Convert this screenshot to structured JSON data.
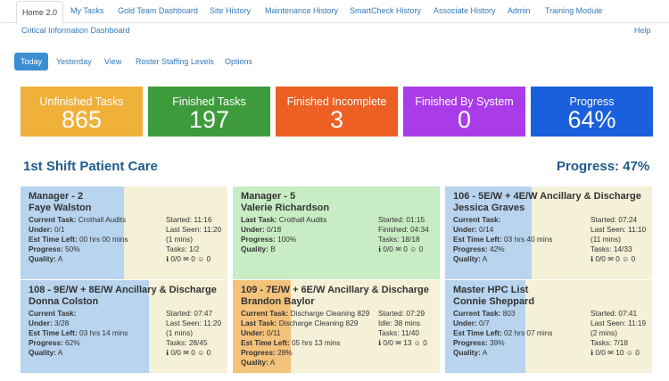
{
  "nav": {
    "items": [
      "Home 2.0",
      "My Tasks",
      "Gold Team Dashboard",
      "Site History",
      "Maintenance History",
      "SmartCheck History",
      "Associate History",
      "Admin",
      "Training Module"
    ],
    "sub_left": "Critical Information Dashboard",
    "help": "Help"
  },
  "pills": [
    "Today",
    "Yesterday",
    "View",
    "Roster Staffing Levels",
    "Options"
  ],
  "tiles": [
    {
      "label": "Unfinished Tasks",
      "value": "865",
      "color": "#f0b13b"
    },
    {
      "label": "Finished Tasks",
      "value": "197",
      "color": "#3e9b3c"
    },
    {
      "label": "Finished Incomplete",
      "value": "3",
      "color": "#ec6024"
    },
    {
      "label": "Finished By System",
      "value": "0",
      "color": "#a93ce8"
    },
    {
      "label": "Progress",
      "value": "64%",
      "color": "#1a5fdc"
    }
  ],
  "section": {
    "title": "1st Shift Patient Care",
    "progress": "Progress: 47%"
  },
  "icons": {
    "info": "info-circle-icon",
    "comment": "comment-icon",
    "person": "person-icon"
  },
  "cards": [
    {
      "title": "Manager - 2",
      "name": "Faye Walston",
      "bg": "#f5f1d8",
      "fill_color": "#b8d4ee",
      "fill_fraction": 0.5,
      "l1k": "Current Task:",
      "l1v": "Crothall Audits",
      "l2k": "Under:",
      "l2v": "0/1",
      "l3k": "Est Time Left:",
      "l3v": "00 hrs 00 mins",
      "l4k": "Progress:",
      "l4v": "50%",
      "l5k": "Quality:",
      "l5v": "A",
      "r1": "Started: 11:16",
      "r2": "Last Seen: 11:20",
      "r3": "(1 mins)",
      "r4": "Tasks: 1/2",
      "c1": "0/0",
      "c2": "0",
      "c3": "0"
    },
    {
      "title": "Manager - 5",
      "name": "Valerie Richardson",
      "bg": "#c8ecc4",
      "fill_color": "#c8ecc4",
      "fill_fraction": 1.0,
      "l1k": "Last Task:",
      "l1v": "Crothall Audits",
      "l2k": "Under:",
      "l2v": "0/18",
      "l3k": "Progress:",
      "l3v": "100%",
      "l4k": "Quality:",
      "l4v": "B",
      "l5k": "",
      "l5v": "",
      "r1": "Started: 01:15",
      "r2": "Finished: 04:34",
      "r3": "Tasks: 18/18",
      "r4": "",
      "c1": "0/0",
      "c2": "0",
      "c3": "0"
    },
    {
      "title": "106 - 5E/W + 4E/W Ancillary & Discharge",
      "name": "Jessica Graves",
      "bg": "#f5f1d8",
      "fill_color": "#b8d4ee",
      "fill_fraction": 0.42,
      "l1k": "Current Task:",
      "l1v": "",
      "l2k": "Under:",
      "l2v": "0/14",
      "l3k": "Est Time Left:",
      "l3v": "03 hrs 40 mins",
      "l4k": "Progress:",
      "l4v": "42%",
      "l5k": "Quality:",
      "l5v": "A",
      "r1": "Started: 07:24",
      "r2": "Last Seen: 11:10",
      "r3": "(11 mins)",
      "r4": "Tasks: 14/33",
      "c1": "0/0",
      "c2": "0",
      "c3": "0"
    },
    {
      "title": "108 - 9E/W + 8E/W Ancillary & Discharge",
      "name": "Donna Colston",
      "bg": "#f5f1d8",
      "fill_color": "#b8d4ee",
      "fill_fraction": 0.62,
      "l1k": "Current Task:",
      "l1v": "",
      "l2k": "Under:",
      "l2v": "3/28",
      "l3k": "Est Time Left:",
      "l3v": "03 hrs 14 mins",
      "l4k": "Progress:",
      "l4v": "62%",
      "l5k": "Quality:",
      "l5v": "A",
      "r1": "Started: 07:47",
      "r2": "Last Seen: 11:20",
      "r3": "(1 mins)",
      "r4": "Tasks: 28/45",
      "c1": "0/0",
      "c2": "0",
      "c3": "0"
    },
    {
      "title": "109 - 7E/W + 6E/W Ancillary & Discharge",
      "name": "Brandon Baylor",
      "bg": "#f5f1d8",
      "fill_color": "#f4c27a",
      "fill_fraction": 0.28,
      "l1k": "Current Task:",
      "l1v": "Discharge Cleaning 829",
      "l2k": "Last Task:",
      "l2v": "Discharge Cleaning 829",
      "l3k": "Under:",
      "l3v": "0/11",
      "l4k": "Est Time Left:",
      "l4v": "05 hrs 13 mins",
      "l5k": "Progress:",
      "l5v": "28%",
      "l6k": "Quality:",
      "l6v": "A",
      "r1": "Started: 07:29",
      "r2": "Idle: 38 mins",
      "r3": "Tasks: 11/40",
      "r4": "",
      "c1": "0/0",
      "c2": "13",
      "c3": "0"
    },
    {
      "title": "Master HPC List",
      "name": "Connie Sheppard",
      "bg": "#f5f1d8",
      "fill_color": "#b8d4ee",
      "fill_fraction": 0.39,
      "l1k": "Current Task:",
      "l1v": "803",
      "l2k": "Under:",
      "l2v": "0/7",
      "l3k": "Est Time Left:",
      "l3v": "02 hrs 07 mins",
      "l4k": "Progress:",
      "l4v": "39%",
      "l5k": "Quality:",
      "l5v": "A",
      "r1": "Started: 07:41",
      "r2": "Last Seen: 11:19",
      "r3": "(2 mins)",
      "r4": "Tasks: 7/18",
      "c1": "0/0",
      "c2": "10",
      "c3": "0"
    }
  ]
}
